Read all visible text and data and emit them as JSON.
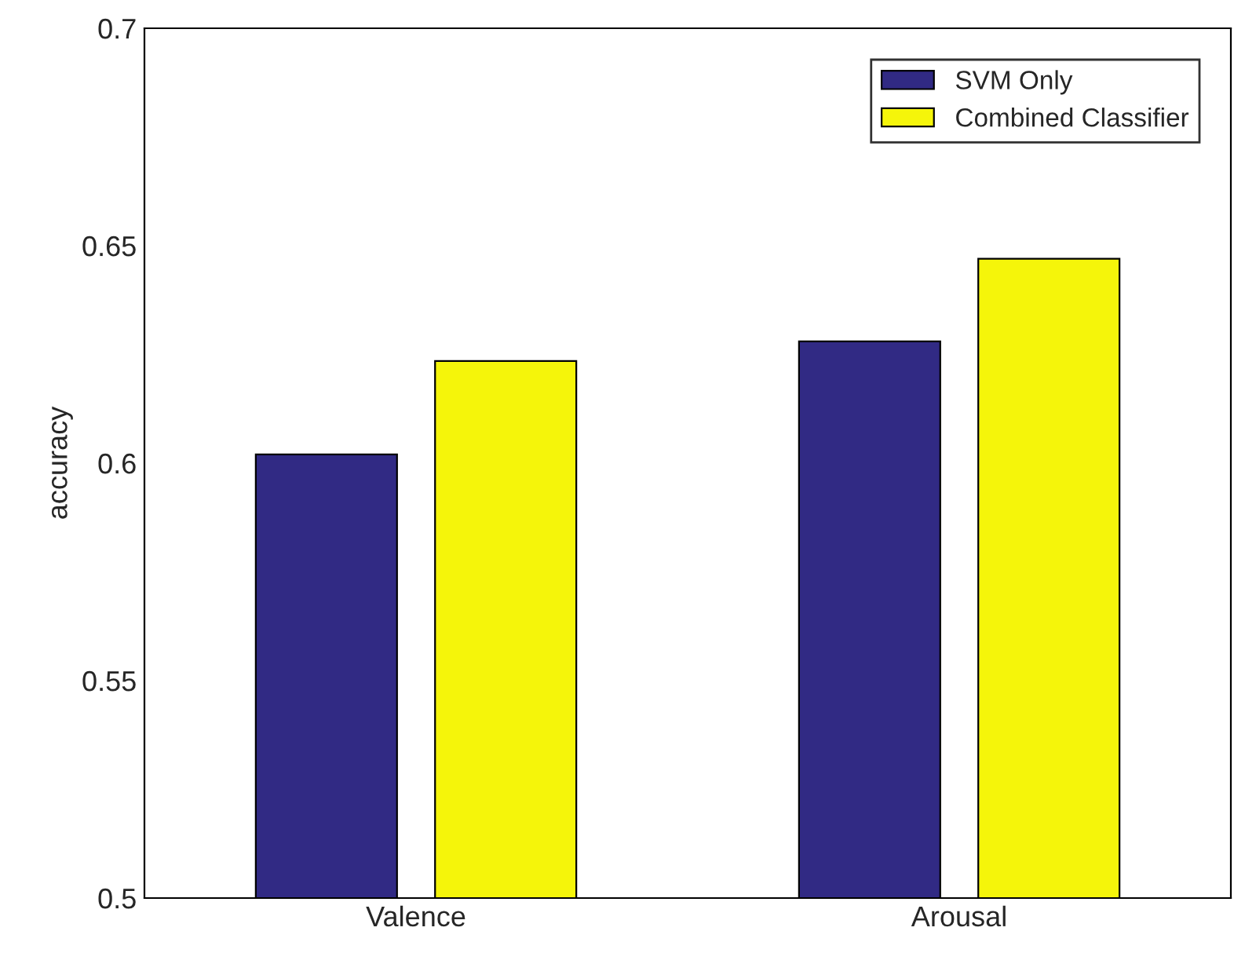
{
  "chart_data": {
    "type": "bar",
    "ylabel": "accuracy",
    "categories": [
      "Valence",
      "Arousal"
    ],
    "series": [
      {
        "name": "SVM Only",
        "color": "#312a84",
        "values": [
          0.602,
          0.628
        ]
      },
      {
        "name": "Combined Classifier",
        "color": "#f5f50a",
        "values": [
          0.6235,
          0.647
        ]
      }
    ],
    "ylim": [
      0.5,
      0.7
    ],
    "yticks": [
      0.5,
      0.55,
      0.6,
      0.65,
      0.7
    ],
    "grid": false,
    "legend": "top right"
  }
}
